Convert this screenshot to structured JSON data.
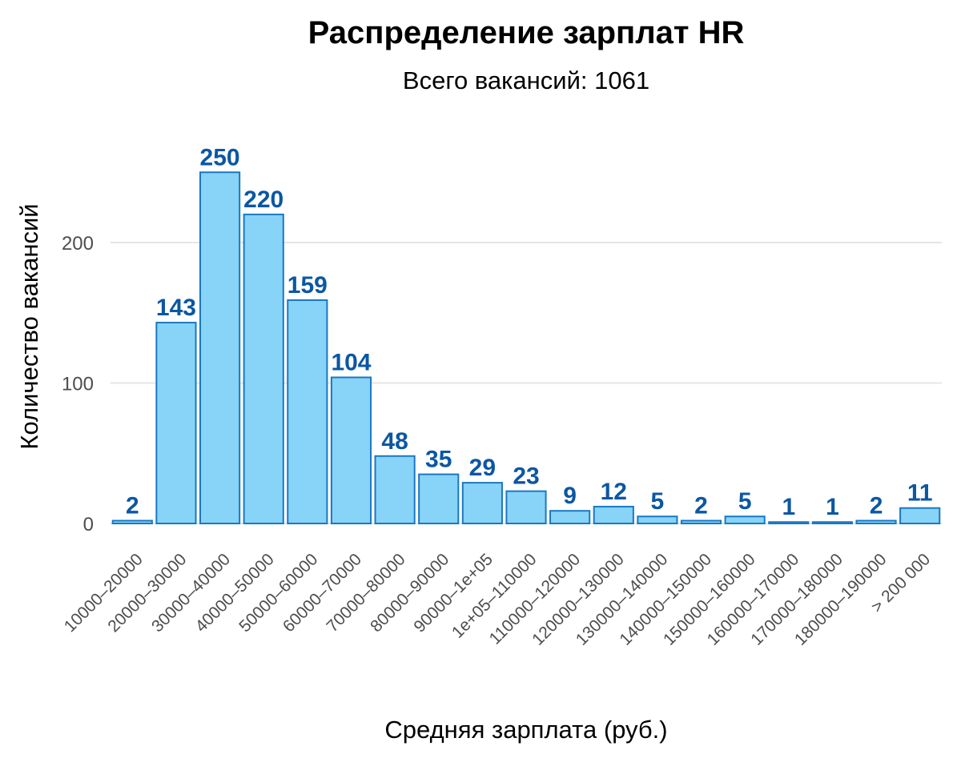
{
  "chart_data": {
    "type": "bar",
    "title": "Распределение зарплат HR",
    "subtitle": "Всего вакансий: 1061",
    "xlabel": "Средняя зарплата (руб.)",
    "ylabel": "Количество вакансий",
    "categories": [
      "10000–20000",
      "20000–30000",
      "30000–40000",
      "40000–50000",
      "50000–60000",
      "60000–70000",
      "70000–80000",
      "80000–90000",
      "90000–1e+05",
      "1e+05–110000",
      "110000–120000",
      "120000–130000",
      "130000–140000",
      "140000–150000",
      "150000–160000",
      "160000–170000",
      "170000–180000",
      "180000–190000",
      "> 200 000"
    ],
    "values": [
      2,
      143,
      250,
      220,
      159,
      104,
      48,
      35,
      29,
      23,
      9,
      12,
      5,
      2,
      5,
      1,
      1,
      2,
      11
    ],
    "data_labels": [
      "2",
      "143",
      "250",
      "220",
      "159",
      "104",
      "48",
      "35",
      "29",
      "23",
      "9",
      "12",
      "5",
      "2",
      "5",
      "1",
      "1",
      "2",
      "11"
    ],
    "y_ticks": [
      0,
      100,
      200
    ],
    "y_tick_labels": [
      "0",
      "100",
      "200"
    ],
    "ylim": [
      0,
      262
    ],
    "grid": true,
    "legend": "none",
    "colors": {
      "bar_fill": "#87d4f8",
      "bar_stroke": "#1a78c2",
      "label": "#0b57a3",
      "grid": "#e6e6e6"
    }
  }
}
